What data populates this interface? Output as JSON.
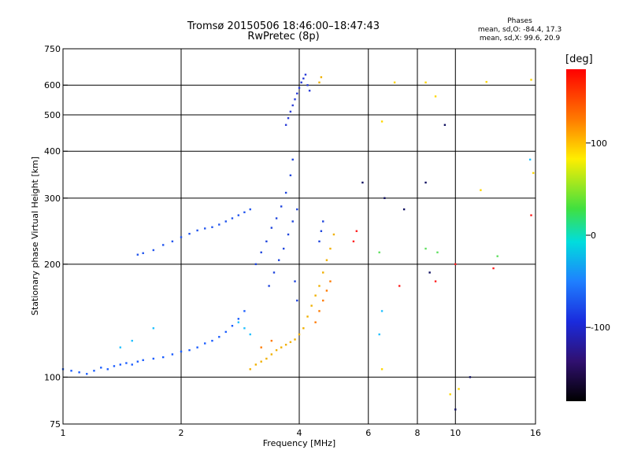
{
  "header": {
    "title": "Tromsø 20150506 18:46:00–18:47:43",
    "subtitle": "RwPretec (8p)",
    "stats": {
      "heading": "Phases",
      "line_o": "mean, sd,O: -84.4, 17.3",
      "line_x": "mean, sd,X:  99.6, 20.9"
    }
  },
  "colorbar": {
    "label": "[deg]",
    "range": [
      -180,
      180
    ],
    "ticks": [
      100,
      0,
      -100
    ],
    "tick_labels": [
      "100",
      "0",
      "-100"
    ]
  },
  "chart_data": {
    "type": "scatter",
    "title": "Tromsø 20150506 18:46:00–18:47:43",
    "subtitle": "RwPretec (8p)",
    "xlabel": "Frequency [MHz]",
    "ylabel": "Stationary phase Virtual Height [km]",
    "xscale": "log",
    "yscale": "log",
    "xlim": [
      1,
      16
    ],
    "ylim": [
      75,
      750
    ],
    "xticks": [
      1,
      2,
      4,
      6,
      8,
      10,
      16
    ],
    "xtick_labels": [
      "1",
      "2",
      "4",
      "6",
      "8",
      "10",
      "16"
    ],
    "yticks": [
      75,
      100,
      200,
      300,
      400,
      500,
      600,
      750
    ],
    "ytick_labels": [
      "75",
      "100",
      "200",
      "300",
      "400",
      "500",
      "600",
      "750"
    ],
    "grid": true,
    "color_scale": "phase [deg], -180 to 180",
    "series": [
      {
        "color": "#1a5cff",
        "points": [
          [
            1,
            105,
            -90
          ],
          [
            1.05,
            104,
            -85
          ],
          [
            1.1,
            103,
            -95
          ],
          [
            1.15,
            102,
            -100
          ],
          [
            1.2,
            104,
            -90
          ],
          [
            1.25,
            106,
            -88
          ],
          [
            1.3,
            105,
            -92
          ],
          [
            1.35,
            107,
            -85
          ],
          [
            1.4,
            108,
            -90
          ],
          [
            1.45,
            109,
            -95
          ],
          [
            1.5,
            108,
            -88
          ],
          [
            1.55,
            110,
            -92
          ],
          [
            1.6,
            111,
            -86
          ],
          [
            1.7,
            112,
            -90
          ],
          [
            1.8,
            113,
            -95
          ],
          [
            1.9,
            115,
            -88
          ],
          [
            2.0,
            117,
            -92
          ],
          [
            2.1,
            118,
            -86
          ],
          [
            2.2,
            120,
            -90
          ],
          [
            2.3,
            123,
            -80
          ],
          [
            2.4,
            125,
            -88
          ],
          [
            2.5,
            128,
            -95
          ],
          [
            2.6,
            132,
            -85
          ],
          [
            2.7,
            137,
            -90
          ],
          [
            2.8,
            143,
            -100
          ],
          [
            2.9,
            150,
            -92
          ]
        ]
      },
      {
        "color": "#2255ee",
        "points": [
          [
            1.55,
            212,
            -95
          ],
          [
            1.6,
            214,
            -90
          ],
          [
            1.7,
            218,
            -88
          ],
          [
            1.8,
            225,
            -92
          ],
          [
            1.9,
            230,
            -95
          ],
          [
            2.0,
            236,
            -90
          ],
          [
            2.1,
            241,
            -88
          ],
          [
            2.2,
            246,
            -92
          ],
          [
            2.3,
            249,
            -95
          ],
          [
            2.4,
            251,
            -90
          ],
          [
            2.5,
            255,
            -88
          ],
          [
            2.6,
            260,
            -92
          ],
          [
            2.7,
            265,
            -95
          ],
          [
            2.8,
            270,
            -90
          ],
          [
            2.9,
            275,
            -85
          ],
          [
            3.0,
            280,
            -92
          ]
        ]
      },
      {
        "color": "#1f45dd",
        "points": [
          [
            3.1,
            200,
            -100
          ],
          [
            3.2,
            215,
            -95
          ],
          [
            3.3,
            230,
            -105
          ],
          [
            3.4,
            250,
            -98
          ],
          [
            3.5,
            265,
            -102
          ],
          [
            3.6,
            285,
            -95
          ],
          [
            3.7,
            310,
            -100
          ],
          [
            3.8,
            345,
            -92
          ],
          [
            3.85,
            380,
            -98
          ],
          [
            3.9,
            180,
            -105
          ],
          [
            3.95,
            160,
            -100
          ],
          [
            3.35,
            175,
            -95
          ],
          [
            3.45,
            190,
            -98
          ],
          [
            3.55,
            205,
            -102
          ],
          [
            3.65,
            220,
            -96
          ],
          [
            3.75,
            240,
            -100
          ],
          [
            3.85,
            260,
            -94
          ],
          [
            3.95,
            280,
            -98
          ],
          [
            4.5,
            230,
            -95
          ],
          [
            4.55,
            245,
            -90
          ],
          [
            4.6,
            260,
            -88
          ]
        ]
      },
      {
        "color": "#2a3dd8",
        "points": [
          [
            3.7,
            470,
            -105
          ],
          [
            3.75,
            490,
            -100
          ],
          [
            3.8,
            510,
            -98
          ],
          [
            3.85,
            530,
            -102
          ],
          [
            3.9,
            550,
            -96
          ],
          [
            3.95,
            570,
            -100
          ],
          [
            4.0,
            590,
            -94
          ],
          [
            4.05,
            610,
            -98
          ],
          [
            4.1,
            625,
            -92
          ],
          [
            4.15,
            640,
            -100
          ],
          [
            4.2,
            600,
            -96
          ],
          [
            4.25,
            580,
            -90
          ]
        ]
      },
      {
        "color": "#f0b000",
        "points": [
          [
            3.0,
            105,
            95
          ],
          [
            3.1,
            108,
            100
          ],
          [
            3.2,
            110,
            105
          ],
          [
            3.3,
            112,
            98
          ],
          [
            3.4,
            115,
            102
          ],
          [
            3.5,
            118,
            95
          ],
          [
            3.6,
            120,
            100
          ],
          [
            3.7,
            122,
            108
          ],
          [
            3.8,
            124,
            98
          ],
          [
            3.9,
            126,
            102
          ],
          [
            4.0,
            130,
            110
          ],
          [
            4.1,
            135,
            95
          ],
          [
            4.2,
            145,
            100
          ],
          [
            4.3,
            155,
            104
          ],
          [
            4.4,
            165,
            98
          ],
          [
            4.5,
            175,
            102
          ],
          [
            4.6,
            190,
            96
          ],
          [
            4.7,
            205,
            100
          ],
          [
            4.8,
            220,
            106
          ],
          [
            4.9,
            240,
            98
          ],
          [
            4.5,
            610,
            104
          ],
          [
            4.55,
            630,
            100
          ]
        ]
      },
      {
        "color": "#ff7a00",
        "points": [
          [
            4.4,
            140,
            130
          ],
          [
            4.5,
            150,
            135
          ],
          [
            4.6,
            160,
            128
          ],
          [
            4.7,
            170,
            132
          ],
          [
            4.8,
            180,
            138
          ],
          [
            3.2,
            120,
            130
          ],
          [
            3.4,
            125,
            128
          ]
        ]
      },
      {
        "color": "#20c0ff",
        "points": [
          [
            1.4,
            120,
            -40
          ],
          [
            1.5,
            125,
            -35
          ],
          [
            1.7,
            135,
            -45
          ],
          [
            2.8,
            140,
            -30
          ],
          [
            2.9,
            135,
            -38
          ],
          [
            3.0,
            130,
            -42
          ],
          [
            6.4,
            130,
            -40
          ],
          [
            6.5,
            150,
            -35
          ],
          [
            15.5,
            380,
            -38
          ]
        ]
      },
      {
        "color": "#ff2020",
        "points": [
          [
            5.5,
            230,
            170
          ],
          [
            5.6,
            245,
            165
          ],
          [
            7.2,
            175,
            168
          ],
          [
            8.9,
            180,
            172
          ],
          [
            10.0,
            200,
            165
          ],
          [
            12.5,
            195,
            170
          ],
          [
            15.6,
            270,
            168
          ]
        ]
      },
      {
        "color": "#ffd700",
        "points": [
          [
            6.5,
            480,
            80
          ],
          [
            7.0,
            610,
            85
          ],
          [
            8.4,
            610,
            75
          ],
          [
            8.9,
            560,
            82
          ],
          [
            9.7,
            90,
            88
          ],
          [
            10.2,
            93,
            80
          ],
          [
            12.0,
            612,
            84
          ],
          [
            15.6,
            620,
            78
          ],
          [
            15.8,
            350,
            85
          ],
          [
            6.5,
            105,
            82
          ],
          [
            11.6,
            315,
            80
          ]
        ]
      },
      {
        "color": "#101060",
        "points": [
          [
            5.8,
            330,
            -150
          ],
          [
            6.6,
            300,
            -160
          ],
          [
            7.4,
            280,
            -155
          ],
          [
            8.4,
            330,
            -158
          ],
          [
            9.4,
            470,
            -150
          ],
          [
            10.0,
            82,
            -160
          ],
          [
            10.9,
            100,
            -155
          ],
          [
            8.6,
            190,
            -162
          ]
        ]
      },
      {
        "color": "#60e060",
        "points": [
          [
            8.4,
            220,
            20
          ],
          [
            9.0,
            215,
            15
          ],
          [
            12.8,
            210,
            10
          ],
          [
            6.4,
            215,
            25
          ]
        ]
      }
    ]
  }
}
